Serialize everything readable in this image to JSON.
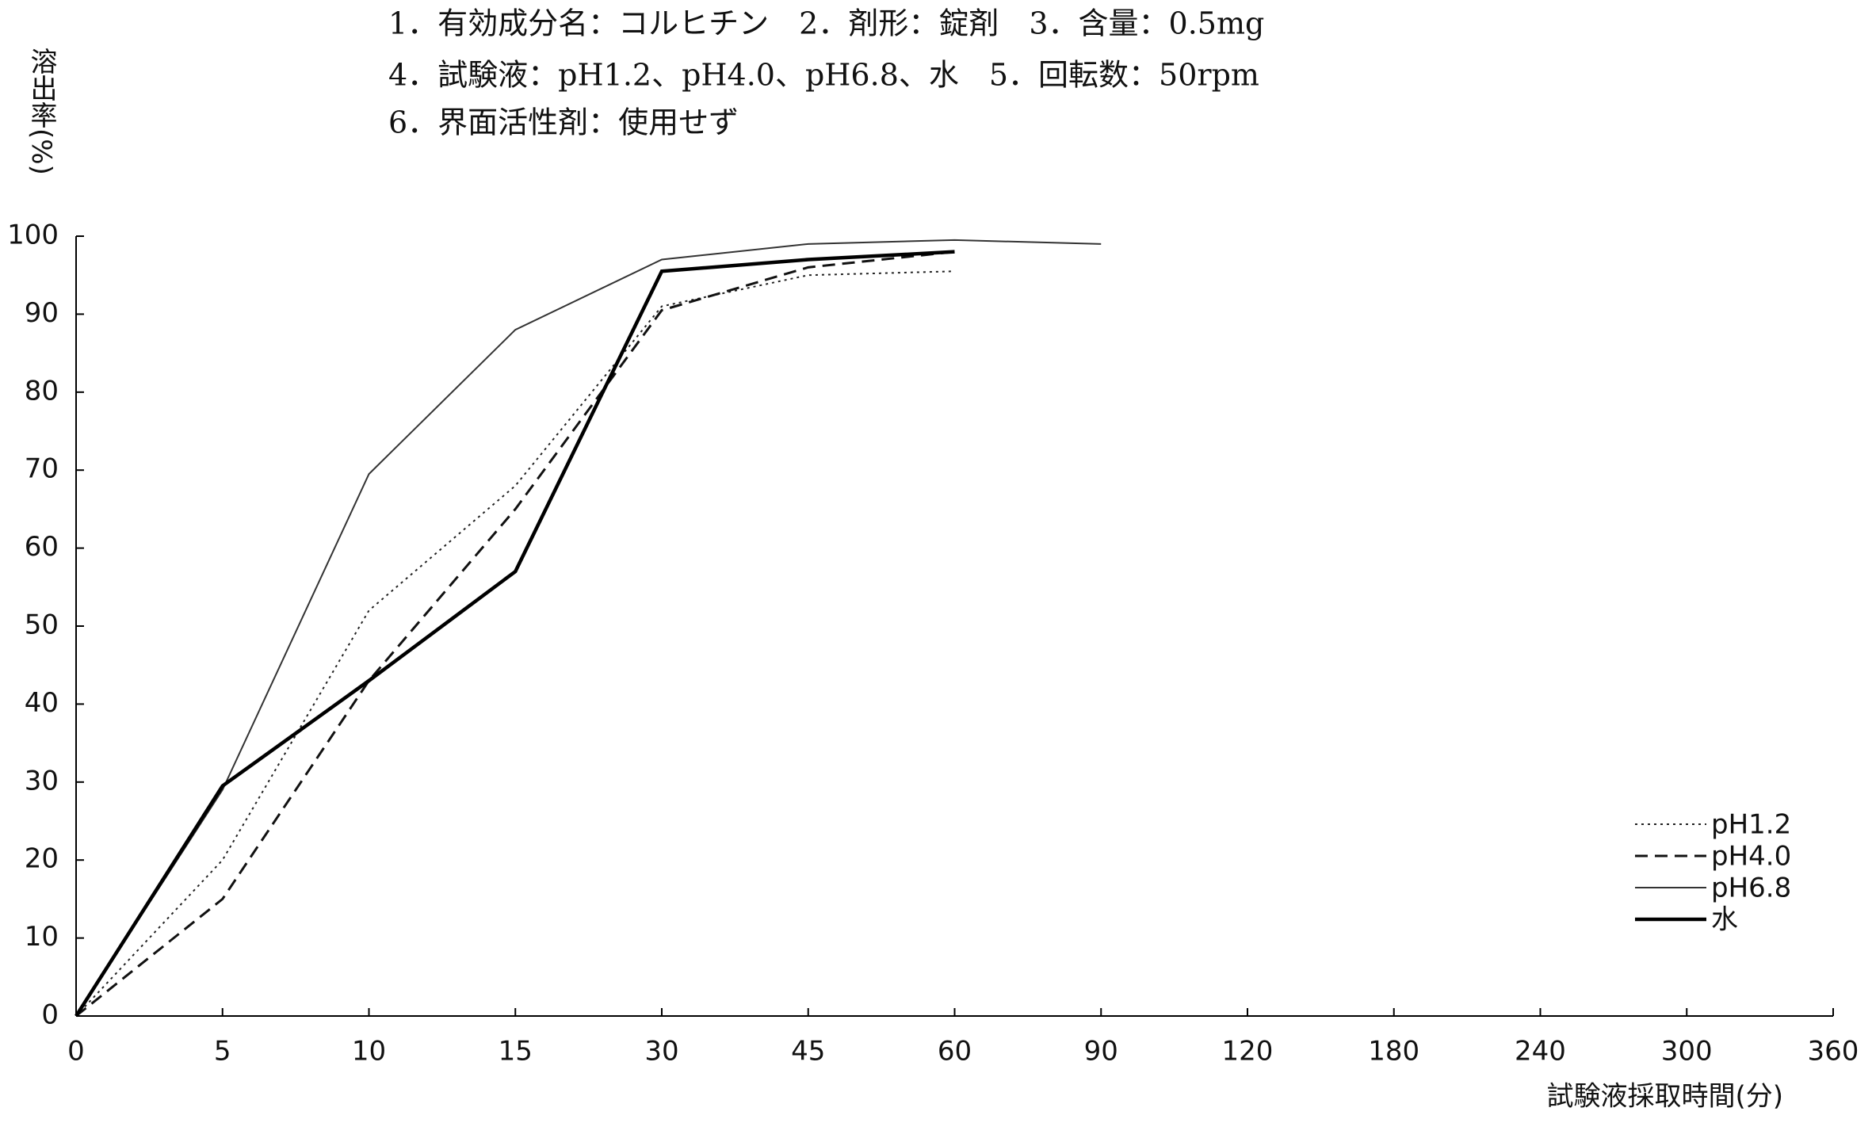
{
  "chart_data": {
    "type": "line",
    "title": [
      "1．有効成分名：コルヒチン　2．剤形：錠剤　3．含量：0.5mg",
      "4．試験液：pH1.2、pH4.0、pH6.8、水　5．回転数：50rpm",
      "6．界面活性剤：使用せず"
    ],
    "y_label": "溶出率(%)",
    "x_label": "試験液採取時間(分)",
    "categories": [
      0,
      5,
      10,
      15,
      30,
      45,
      60,
      90,
      120,
      180,
      240,
      300,
      360
    ],
    "series": [
      {
        "name": "pH1.2",
        "color": "#222",
        "dash": "dotted",
        "width": 2,
        "values": [
          0,
          20,
          52,
          68,
          91,
          95,
          95.5,
          null,
          null,
          null,
          null,
          null,
          null
        ]
      },
      {
        "name": "pH4.0",
        "color": "#111",
        "dash": "dashed",
        "width": 3,
        "values": [
          0,
          15,
          43,
          65,
          90.5,
          96,
          98,
          null,
          null,
          null,
          null,
          null,
          null
        ]
      },
      {
        "name": "pH6.8",
        "color": "#333",
        "dash": "solid",
        "width": 2,
        "values": [
          0,
          29,
          69.5,
          88,
          97,
          99,
          99.5,
          99,
          null,
          null,
          null,
          null,
          null
        ]
      },
      {
        "name": "水",
        "color": "#000",
        "dash": "solid",
        "width": 4.5,
        "values": [
          0,
          29.5,
          43,
          57,
          95.5,
          97,
          98,
          null,
          null,
          null,
          null,
          null,
          null
        ]
      }
    ],
    "ylim": [
      0,
      100
    ],
    "yticks": [
      0,
      10,
      20,
      30,
      40,
      50,
      60,
      70,
      80,
      90,
      100
    ],
    "legend": "lower right"
  }
}
